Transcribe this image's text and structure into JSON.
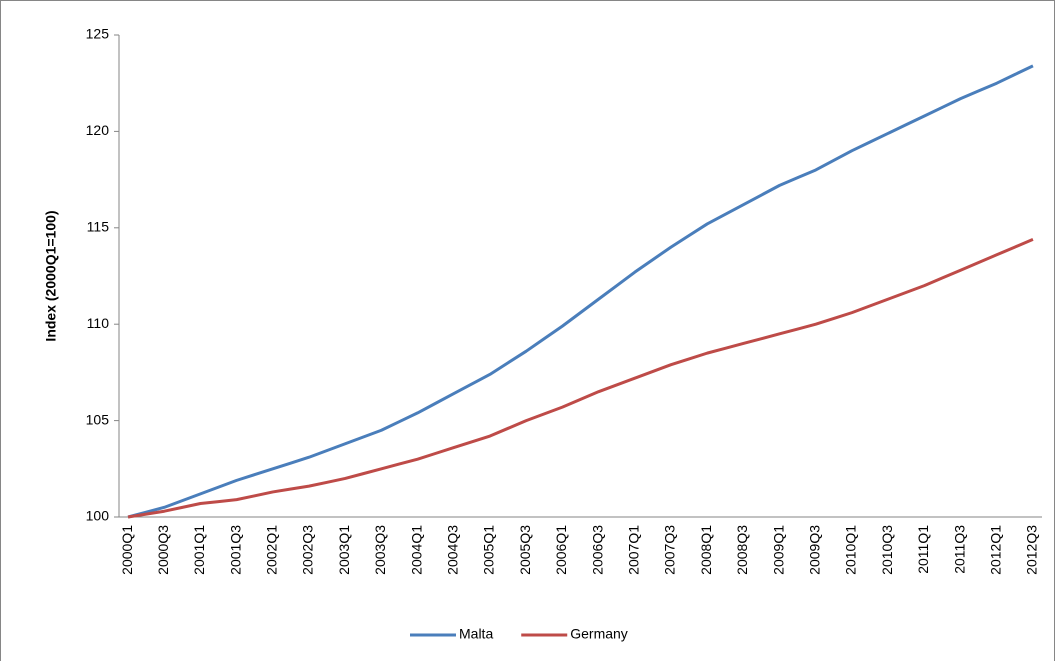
{
  "chart_data": {
    "type": "line",
    "y_label": "Index (2000Q1=100)",
    "categories": [
      "2000Q1",
      null,
      "2000Q3",
      null,
      "2001Q1",
      null,
      "2001Q3",
      null,
      "2002Q1",
      null,
      "2002Q3",
      null,
      "2003Q1",
      null,
      "2003Q3",
      null,
      "2004Q1",
      null,
      "2004Q3",
      null,
      "2005Q1",
      null,
      "2005Q3",
      null,
      "2006Q1",
      null,
      "2006Q3",
      null,
      "2007Q1",
      null,
      "2007Q3",
      null,
      "2008Q1",
      null,
      "2008Q3",
      null,
      "2009Q1",
      null,
      "2009Q3",
      null,
      "2010Q1",
      null,
      "2010Q3",
      null,
      "2011Q1",
      null,
      "2011Q3",
      null,
      "2012Q1",
      null,
      "2012Q3"
    ],
    "series": [
      {
        "name": "Malta",
        "color": "#4a7ebb",
        "values": [
          100,
          100.25,
          100.5,
          100.85,
          101.2,
          101.55,
          101.9,
          102.2,
          102.5,
          102.8,
          103.1,
          103.45,
          103.8,
          104.15,
          104.5,
          104.95,
          105.4,
          105.9,
          106.4,
          106.9,
          107.4,
          108.0,
          108.6,
          109.25,
          109.9,
          110.6,
          111.3,
          112.0,
          112.7,
          113.35,
          114.0,
          114.6,
          115.2,
          115.7,
          116.2,
          116.7,
          117.2,
          117.6,
          118.0,
          118.5,
          119.0,
          119.45,
          119.9,
          120.35,
          120.8,
          121.25,
          121.7,
          122.1,
          122.5,
          122.95,
          123.4
        ]
      },
      {
        "name": "Germany",
        "color": "#be4b48",
        "values": [
          100,
          100.15,
          100.3,
          100.5,
          100.7,
          100.8,
          100.9,
          101.1,
          101.3,
          101.45,
          101.6,
          101.8,
          102.0,
          102.25,
          102.5,
          102.75,
          103.0,
          103.3,
          103.6,
          103.9,
          104.2,
          104.6,
          105.0,
          105.35,
          105.7,
          106.1,
          106.5,
          106.85,
          107.2,
          107.55,
          107.9,
          108.2,
          108.5,
          108.75,
          109.0,
          109.25,
          109.5,
          109.75,
          110.0,
          110.3,
          110.6,
          110.95,
          111.3,
          111.65,
          112.0,
          112.4,
          112.8,
          113.2,
          113.6,
          114.0,
          114.4
        ]
      }
    ],
    "ylim": [
      100,
      125
    ],
    "yticks": [
      100,
      105,
      110,
      115,
      120,
      125
    ],
    "legend": "bottom"
  }
}
